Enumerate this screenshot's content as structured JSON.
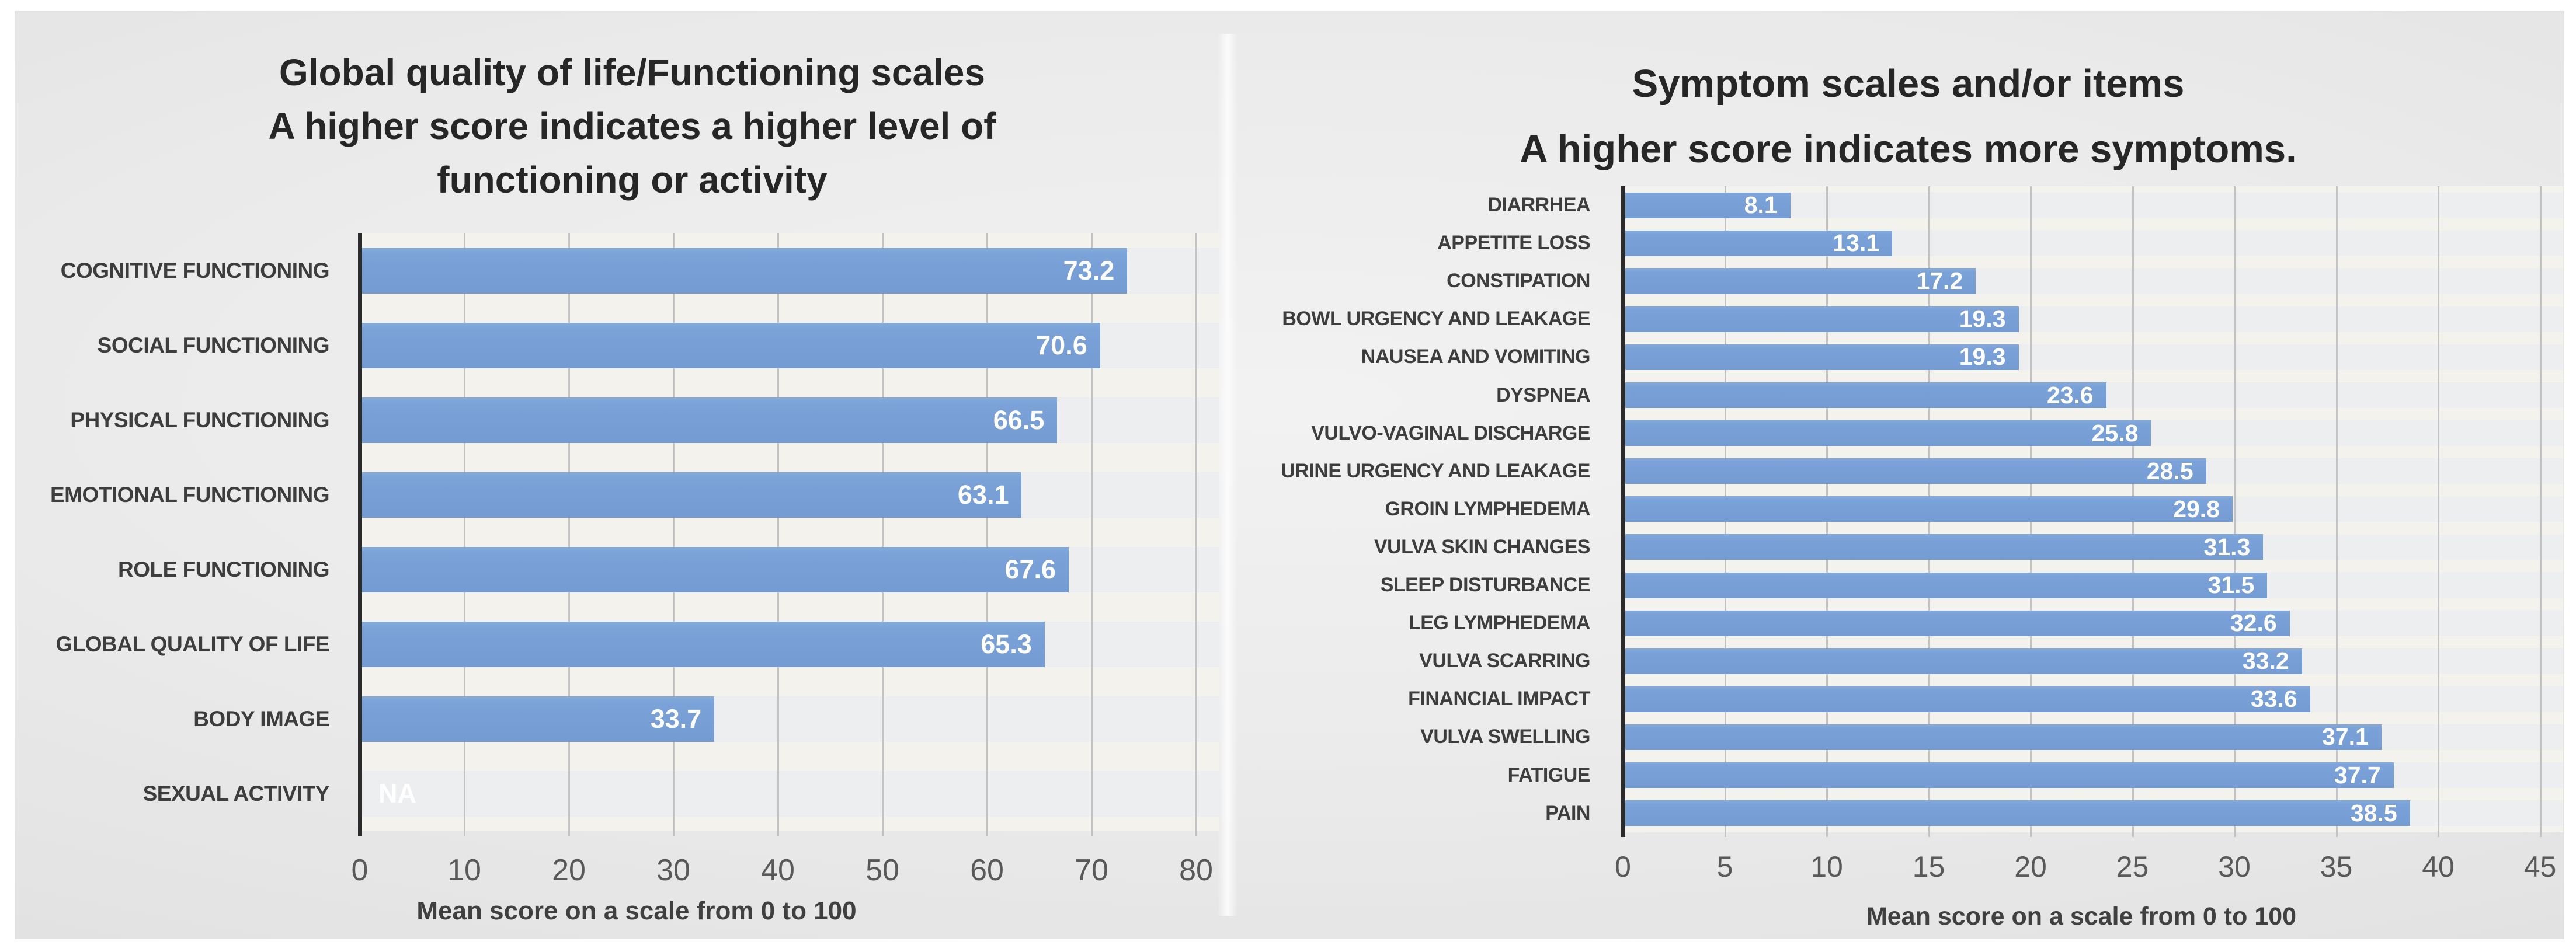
{
  "page": {
    "background": "#ffffff"
  },
  "colors": {
    "bar": "#7AA2D8",
    "title_text": "#262626",
    "category_label": "#3D3D3D",
    "tick_label": "#595959",
    "axis_line": "#2B2B2B",
    "gridline": "#C2C2C2",
    "value_label": "#FFFFFF"
  },
  "chart_data": [
    {
      "type": "bar",
      "orientation": "horizontal",
      "title": "Global quality of life/Functioning scales\nA higher score indicates a higher level of\nfunctioning or activity",
      "categories": [
        "COGNITIVE FUNCTIONING",
        "SOCIAL FUNCTIONING",
        "PHYSICAL FUNCTIONING",
        "EMOTIONAL FUNCTIONING",
        "ROLE FUNCTIONING",
        "GLOBAL QUALITY OF LIFE",
        "BODY IMAGE",
        "SEXUAL ACTIVITY"
      ],
      "values": [
        73.2,
        70.6,
        66.5,
        63.1,
        67.6,
        65.3,
        33.7,
        null
      ],
      "value_labels": [
        "73.2",
        "70.6",
        "66.5",
        "63.1",
        "67.6",
        "65.3",
        "33.7",
        "NA"
      ],
      "xlabel": "Mean score on a scale from 0 to 100",
      "xticks": [
        0,
        10,
        20,
        30,
        40,
        50,
        60,
        70,
        80
      ],
      "xlim": [
        0,
        82
      ],
      "grid": true,
      "legend": false,
      "bar_color": "#7AA2D8"
    },
    {
      "type": "bar",
      "orientation": "horizontal",
      "title": "Symptom scales and/or items\nA higher score indicates more symptoms.",
      "categories": [
        "DIARRHEA",
        "APPETITE LOSS",
        "CONSTIPATION",
        "BOWL URGENCY AND LEAKAGE",
        "NAUSEA AND VOMITING",
        "DYSPNEA",
        "VULVO-VAGINAL DISCHARGE",
        "URINE URGENCY AND LEAKAGE",
        "GROIN LYMPHEDEMA",
        "VULVA SKIN CHANGES",
        "SLEEP DISTURBANCE",
        "LEG LYMPHEDEMA",
        "VULVA SCARRING",
        "FINANCIAL IMPACT",
        "VULVA SWELLING",
        "FATIGUE",
        "PAIN"
      ],
      "values": [
        8.1,
        13.1,
        17.2,
        19.3,
        19.3,
        23.6,
        25.8,
        28.5,
        29.8,
        31.3,
        31.5,
        32.6,
        33.2,
        33.6,
        37.1,
        37.7,
        38.5
      ],
      "value_labels": [
        "8.1",
        "13.1",
        "17.2",
        "19.3",
        "19.3",
        "23.6",
        "25.8",
        "28.5",
        "29.8",
        "31.3",
        "31.5",
        "32.6",
        "33.2",
        "33.6",
        "37.1",
        "37.7",
        "38.5"
      ],
      "xlabel": "Mean score on a scale from 0 to 100",
      "xticks": [
        0,
        5,
        10,
        15,
        20,
        25,
        30,
        35,
        40,
        45
      ],
      "xlim": [
        0,
        46
      ],
      "grid": true,
      "legend": false,
      "bar_color": "#7AA2D8"
    }
  ]
}
